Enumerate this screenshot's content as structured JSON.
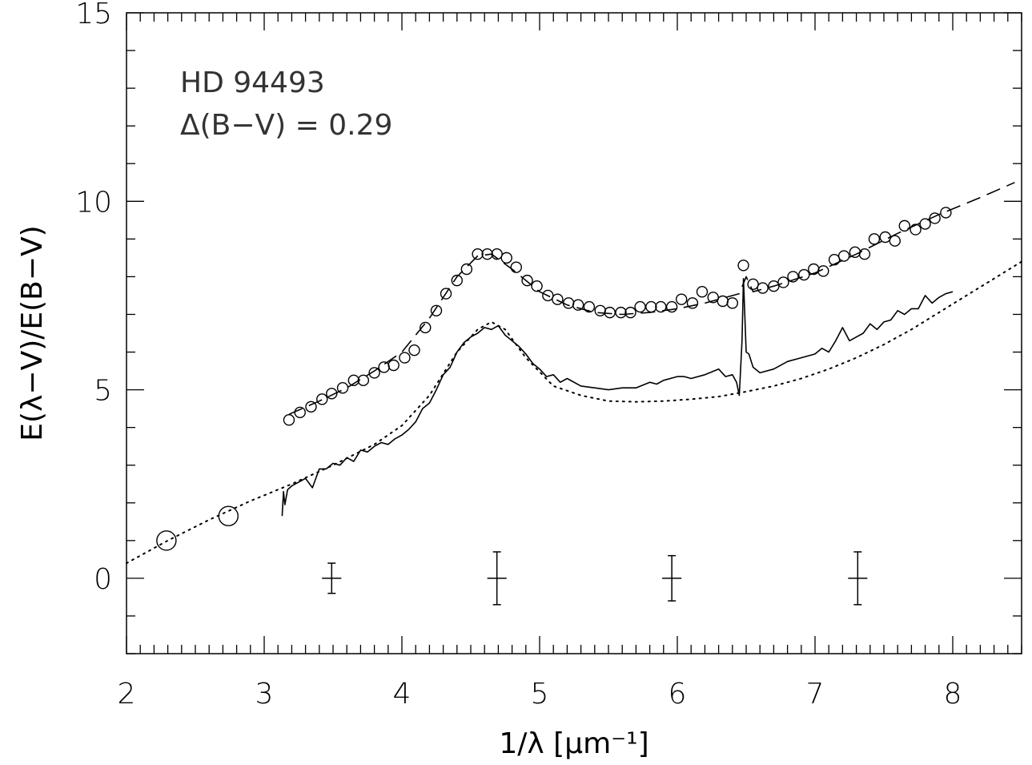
{
  "chart_data": {
    "type": "line",
    "title": "",
    "annotations": [
      "HD 94493",
      "Δ(B−V) = 0.29"
    ],
    "xlabel": "1/λ [μm⁻¹]",
    "ylabel": "E(λ−V)/E(B−V)",
    "xlim": [
      2,
      8.5
    ],
    "ylim": [
      -2,
      15
    ],
    "x_ticks": [
      2,
      3,
      4,
      5,
      6,
      7,
      8
    ],
    "x_tick_labels": [
      "2",
      "3",
      "4",
      "5",
      "6",
      "7",
      "8"
    ],
    "y_ticks": [
      0,
      5,
      10,
      15
    ],
    "y_tick_labels": [
      "0",
      "5",
      "10",
      "15"
    ],
    "grid": false,
    "series": [
      {
        "style": "open-circles",
        "x": [
          3.18,
          3.26,
          3.34,
          3.42,
          3.49,
          3.57,
          3.65,
          3.72,
          3.8,
          3.87,
          3.94,
          4.02,
          4.09,
          4.17,
          4.25,
          4.32,
          4.4,
          4.47,
          4.55,
          4.62,
          4.69,
          4.76,
          4.83,
          4.91,
          4.98,
          5.06,
          5.13,
          5.21,
          5.28,
          5.36,
          5.44,
          5.51,
          5.59,
          5.66,
          5.73,
          5.81,
          5.88,
          5.96,
          6.03,
          6.11,
          6.18,
          6.26,
          6.33,
          6.4,
          6.48,
          6.55,
          6.62,
          6.7,
          6.77,
          6.84,
          6.92,
          6.99,
          7.06,
          7.14,
          7.21,
          7.29,
          7.36,
          7.43,
          7.51,
          7.58,
          7.65,
          7.73,
          7.8,
          7.87,
          7.95
        ],
        "y": [
          4.2,
          4.4,
          4.55,
          4.75,
          4.9,
          5.05,
          5.25,
          5.25,
          5.45,
          5.6,
          5.65,
          5.85,
          6.05,
          6.65,
          7.1,
          7.55,
          7.9,
          8.2,
          8.6,
          8.6,
          8.6,
          8.5,
          8.25,
          7.9,
          7.75,
          7.5,
          7.4,
          7.3,
          7.25,
          7.2,
          7.1,
          7.05,
          7.05,
          7.05,
          7.2,
          7.2,
          7.2,
          7.2,
          7.4,
          7.3,
          7.6,
          7.45,
          7.35,
          7.3,
          8.3,
          7.8,
          7.7,
          7.75,
          7.85,
          8.0,
          8.05,
          8.2,
          8.15,
          8.45,
          8.55,
          8.65,
          8.6,
          9.0,
          9.05,
          8.95,
          9.35,
          9.25,
          9.4,
          9.55,
          9.7
        ]
      },
      {
        "style": "dashed",
        "x": [
          3.18,
          3.4,
          3.6,
          3.8,
          4.0,
          4.2,
          4.4,
          4.55,
          4.65,
          4.8,
          5.0,
          5.2,
          5.4,
          5.6,
          5.8,
          6.0,
          6.2,
          6.45,
          6.5,
          6.55,
          6.7,
          7.0,
          7.3,
          7.6,
          7.9,
          8.2,
          8.45
        ],
        "y": [
          4.35,
          4.7,
          5.05,
          5.5,
          6.0,
          6.9,
          8.0,
          8.55,
          8.6,
          8.2,
          7.6,
          7.25,
          7.05,
          7.0,
          7.05,
          7.15,
          7.3,
          7.55,
          8.0,
          7.6,
          7.75,
          8.1,
          8.6,
          9.15,
          9.65,
          10.1,
          10.5
        ]
      },
      {
        "style": "solid",
        "x": [
          3.13,
          3.14,
          3.15,
          3.17,
          3.2,
          3.25,
          3.3,
          3.35,
          3.4,
          3.45,
          3.5,
          3.55,
          3.6,
          3.65,
          3.7,
          3.75,
          3.8,
          3.85,
          3.9,
          3.95,
          4.0,
          4.05,
          4.1,
          4.15,
          4.2,
          4.25,
          4.3,
          4.35,
          4.4,
          4.45,
          4.5,
          4.55,
          4.6,
          4.65,
          4.7,
          4.75,
          4.8,
          4.85,
          4.9,
          4.95,
          5.0,
          5.05,
          5.1,
          5.15,
          5.2,
          5.3,
          5.4,
          5.5,
          5.6,
          5.7,
          5.8,
          5.85,
          5.9,
          6.0,
          6.05,
          6.1,
          6.2,
          6.3,
          6.35,
          6.4,
          6.43,
          6.45,
          6.47,
          6.48,
          6.5,
          6.52,
          6.55,
          6.6,
          6.7,
          6.8,
          6.9,
          7.0,
          7.05,
          7.1,
          7.15,
          7.2,
          7.25,
          7.3,
          7.35,
          7.4,
          7.45,
          7.5,
          7.55,
          7.6,
          7.65,
          7.7,
          7.75,
          7.8,
          7.85,
          7.9,
          7.95,
          8.0
        ],
        "y": [
          1.65,
          2.3,
          1.95,
          2.35,
          2.45,
          2.55,
          2.65,
          2.4,
          2.9,
          2.9,
          3.05,
          3.0,
          3.2,
          3.1,
          3.4,
          3.35,
          3.5,
          3.6,
          3.55,
          3.7,
          3.8,
          3.95,
          4.15,
          4.5,
          4.65,
          5.0,
          5.4,
          5.6,
          6.0,
          6.25,
          6.4,
          6.5,
          6.65,
          6.6,
          6.7,
          6.45,
          6.3,
          6.15,
          5.95,
          5.7,
          5.55,
          5.35,
          5.4,
          5.2,
          5.3,
          5.1,
          5.05,
          5.0,
          5.05,
          5.05,
          5.2,
          5.15,
          5.25,
          5.35,
          5.35,
          5.3,
          5.4,
          5.55,
          5.35,
          5.4,
          5.2,
          4.85,
          6.3,
          7.95,
          6.0,
          5.95,
          5.6,
          5.45,
          5.55,
          5.75,
          5.85,
          5.95,
          6.1,
          6.0,
          6.3,
          6.65,
          6.3,
          6.4,
          6.5,
          6.75,
          6.6,
          6.8,
          6.85,
          7.1,
          7.0,
          7.15,
          7.15,
          7.5,
          7.3,
          7.45,
          7.55,
          7.6
        ]
      },
      {
        "style": "dotted",
        "x": [
          2.0,
          2.3,
          2.6,
          2.9,
          3.2,
          3.5,
          3.8,
          4.0,
          4.2,
          4.4,
          4.55,
          4.65,
          4.75,
          4.9,
          5.1,
          5.3,
          5.5,
          5.7,
          5.9,
          6.1,
          6.3,
          6.5,
          6.7,
          6.9,
          7.1,
          7.3,
          7.5,
          7.7,
          7.9,
          8.1,
          8.3,
          8.5
        ],
        "y": [
          0.4,
          1.0,
          1.55,
          2.05,
          2.5,
          3.0,
          3.55,
          4.05,
          4.85,
          6.0,
          6.6,
          6.8,
          6.6,
          5.85,
          5.1,
          4.85,
          4.7,
          4.68,
          4.7,
          4.75,
          4.82,
          4.95,
          5.1,
          5.3,
          5.55,
          5.85,
          6.2,
          6.6,
          7.05,
          7.5,
          7.95,
          8.4
        ]
      },
      {
        "style": "large-open-circles",
        "x": [
          2.29,
          2.74
        ],
        "y": [
          1.0,
          1.65
        ]
      }
    ],
    "error_bars": [
      {
        "x": 3.49,
        "y": 0.0,
        "yerr": 0.4,
        "xerr": 0.07
      },
      {
        "x": 4.69,
        "y": 0.0,
        "yerr": 0.7,
        "xerr": 0.07
      },
      {
        "x": 5.96,
        "y": 0.0,
        "yerr": 0.6,
        "xerr": 0.07
      },
      {
        "x": 7.31,
        "y": 0.0,
        "yerr": 0.7,
        "xerr": 0.07
      }
    ]
  }
}
